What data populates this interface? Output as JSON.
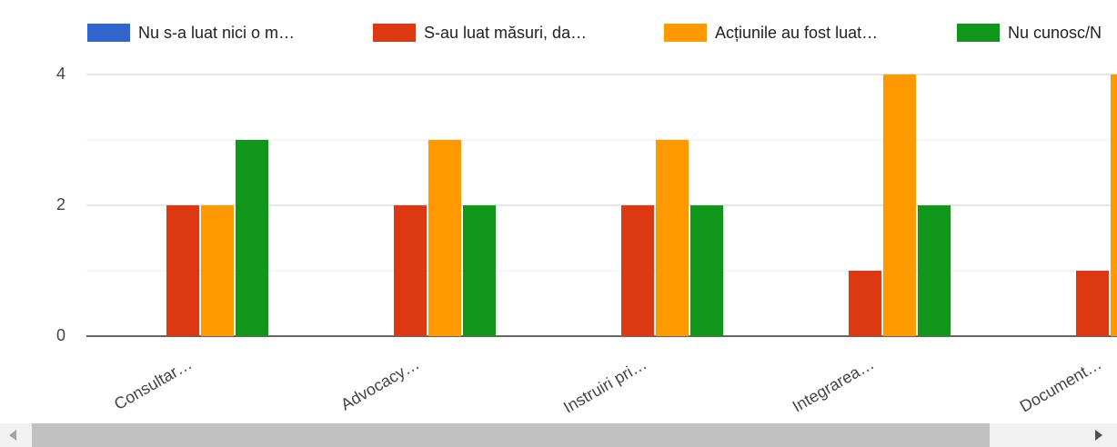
{
  "chart_data": {
    "type": "bar",
    "categories": [
      "Consultar…",
      "Advocacy…",
      "Instruiri pri…",
      "Integrarea…",
      "Document…"
    ],
    "series": [
      {
        "name": "Nu s-a luat nici o m…",
        "color": "#3366cc",
        "values": [
          0,
          0,
          0,
          0,
          0
        ]
      },
      {
        "name": "S-au luat măsuri, da…",
        "color": "#dc3912",
        "values": [
          2,
          2,
          2,
          1,
          1
        ]
      },
      {
        "name": "Acțiunile au fost luat…",
        "color": "#ff9900",
        "values": [
          2,
          3,
          3,
          4,
          4
        ]
      },
      {
        "name": "Nu cunosc/N",
        "color": "#109618",
        "values": [
          3,
          2,
          2,
          2,
          null
        ]
      }
    ],
    "ylim": [
      0,
      4
    ],
    "yticks": [
      0,
      2,
      4
    ],
    "minor_yticks": [
      1,
      3
    ],
    "grid": true,
    "legend": "top"
  }
}
